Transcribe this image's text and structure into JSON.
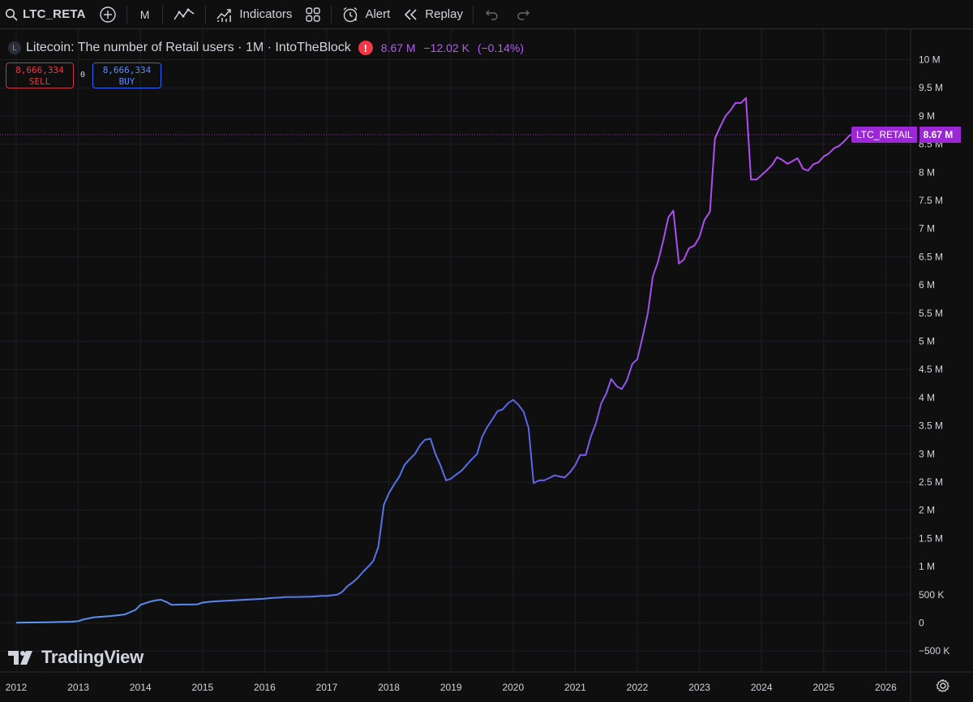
{
  "toolbar": {
    "symbol": "LTC_RETA",
    "interval": "M",
    "indicators_label": "Indicators",
    "alert_label": "Alert",
    "replay_label": "Replay"
  },
  "legend": {
    "logo_letter": "L",
    "title": "Litecoin: The number of Retail users · 1M · IntoTheBlock",
    "warning_icon": "!",
    "last_value": "8.67 M",
    "change": "−12.02 K",
    "change_pct": "(−0.14%)"
  },
  "trade": {
    "sell_price": "8,666,334",
    "sell_label": "SELL",
    "spread": "0",
    "buy_price": "8,666,334",
    "buy_label": "BUY"
  },
  "last_label": {
    "name": "LTC_RETAIL",
    "price": "8.67 M"
  },
  "brand": "TradingView",
  "colors": {
    "background": "#0f0f0f",
    "line_start": "#5b9cf0",
    "line_mid": "#5566e8",
    "line_end": "#b14cf0",
    "price_line": "#9c27d6",
    "sell": "#f23645",
    "buy": "#2962ff"
  },
  "chart_data": {
    "type": "line",
    "ylim": [
      -600000,
      10100000
    ],
    "xlim": [
      2011.95,
      2026.6
    ],
    "y_ticks": [
      {
        "value": 10000000,
        "label": "10 M"
      },
      {
        "value": 9500000,
        "label": "9.5 M"
      },
      {
        "value": 9000000,
        "label": "9 M"
      },
      {
        "value": 8500000,
        "label": "8.5 M"
      },
      {
        "value": 8000000,
        "label": "8 M"
      },
      {
        "value": 7500000,
        "label": "7.5 M"
      },
      {
        "value": 7000000,
        "label": "7 M"
      },
      {
        "value": 6500000,
        "label": "6.5 M"
      },
      {
        "value": 6000000,
        "label": "6 M"
      },
      {
        "value": 5500000,
        "label": "5.5 M"
      },
      {
        "value": 5000000,
        "label": "5 M"
      },
      {
        "value": 4500000,
        "label": "4.5 M"
      },
      {
        "value": 4000000,
        "label": "4 M"
      },
      {
        "value": 3500000,
        "label": "3.5 M"
      },
      {
        "value": 3000000,
        "label": "3 M"
      },
      {
        "value": 2500000,
        "label": "2.5 M"
      },
      {
        "value": 2000000,
        "label": "2 M"
      },
      {
        "value": 1500000,
        "label": "1.5 M"
      },
      {
        "value": 1000000,
        "label": "1 M"
      },
      {
        "value": 500000,
        "label": "500 K"
      },
      {
        "value": 0,
        "label": "0"
      },
      {
        "value": -500000,
        "label": "−500 K"
      }
    ],
    "x_ticks": [
      "2012",
      "2013",
      "2014",
      "2015",
      "2016",
      "2017",
      "2018",
      "2019",
      "2020",
      "2021",
      "2022",
      "2023",
      "2024",
      "2025",
      "2026"
    ],
    "last_value": 8666334,
    "series": [
      {
        "points": [
          [
            2012.0,
            5000
          ],
          [
            2012.5,
            10000
          ],
          [
            2012.9,
            22000
          ],
          [
            2013.0,
            30000
          ],
          [
            2013.08,
            60000
          ],
          [
            2013.25,
            100000
          ],
          [
            2013.5,
            120000
          ],
          [
            2013.75,
            150000
          ],
          [
            2013.92,
            230000
          ],
          [
            2014.0,
            320000
          ],
          [
            2014.08,
            350000
          ],
          [
            2014.17,
            380000
          ],
          [
            2014.25,
            400000
          ],
          [
            2014.33,
            410000
          ],
          [
            2014.42,
            370000
          ],
          [
            2014.5,
            320000
          ],
          [
            2014.67,
            325000
          ],
          [
            2014.83,
            325000
          ],
          [
            2014.92,
            330000
          ],
          [
            2015.0,
            360000
          ],
          [
            2015.17,
            380000
          ],
          [
            2015.5,
            400000
          ],
          [
            2015.75,
            415000
          ],
          [
            2016.0,
            430000
          ],
          [
            2016.08,
            440000
          ],
          [
            2016.17,
            445000
          ],
          [
            2016.25,
            450000
          ],
          [
            2016.33,
            460000
          ],
          [
            2016.42,
            460000
          ],
          [
            2016.5,
            460000
          ],
          [
            2016.75,
            465000
          ],
          [
            2016.92,
            480000
          ],
          [
            2017.0,
            480000
          ],
          [
            2017.17,
            500000
          ],
          [
            2017.25,
            550000
          ],
          [
            2017.33,
            650000
          ],
          [
            2017.42,
            720000
          ],
          [
            2017.5,
            800000
          ],
          [
            2017.58,
            900000
          ],
          [
            2017.67,
            1000000
          ],
          [
            2017.75,
            1100000
          ],
          [
            2017.83,
            1350000
          ],
          [
            2017.92,
            2100000
          ],
          [
            2018.0,
            2300000
          ],
          [
            2018.08,
            2450000
          ],
          [
            2018.17,
            2600000
          ],
          [
            2018.25,
            2800000
          ],
          [
            2018.33,
            2900000
          ],
          [
            2018.42,
            3000000
          ],
          [
            2018.5,
            3150000
          ],
          [
            2018.58,
            3250000
          ],
          [
            2018.67,
            3270000
          ],
          [
            2018.75,
            3000000
          ],
          [
            2018.83,
            2800000
          ],
          [
            2018.92,
            2530000
          ],
          [
            2019.0,
            2560000
          ],
          [
            2019.08,
            2630000
          ],
          [
            2019.17,
            2700000
          ],
          [
            2019.25,
            2800000
          ],
          [
            2019.33,
            2900000
          ],
          [
            2019.42,
            3000000
          ],
          [
            2019.5,
            3300000
          ],
          [
            2019.58,
            3470000
          ],
          [
            2019.67,
            3620000
          ],
          [
            2019.75,
            3760000
          ],
          [
            2019.83,
            3790000
          ],
          [
            2019.92,
            3900000
          ],
          [
            2020.0,
            3960000
          ],
          [
            2020.08,
            3880000
          ],
          [
            2020.17,
            3750000
          ],
          [
            2020.25,
            3460000
          ],
          [
            2020.33,
            2480000
          ],
          [
            2020.42,
            2530000
          ],
          [
            2020.5,
            2530000
          ],
          [
            2020.58,
            2570000
          ],
          [
            2020.67,
            2620000
          ],
          [
            2020.75,
            2600000
          ],
          [
            2020.83,
            2580000
          ],
          [
            2020.92,
            2680000
          ],
          [
            2021.0,
            2800000
          ],
          [
            2021.08,
            2980000
          ],
          [
            2021.17,
            2980000
          ],
          [
            2021.25,
            3300000
          ],
          [
            2021.33,
            3530000
          ],
          [
            2021.42,
            3900000
          ],
          [
            2021.5,
            4070000
          ],
          [
            2021.58,
            4330000
          ],
          [
            2021.67,
            4200000
          ],
          [
            2021.75,
            4150000
          ],
          [
            2021.83,
            4300000
          ],
          [
            2021.92,
            4600000
          ],
          [
            2022.0,
            4680000
          ],
          [
            2022.08,
            5050000
          ],
          [
            2022.17,
            5500000
          ],
          [
            2022.25,
            6150000
          ],
          [
            2022.33,
            6400000
          ],
          [
            2022.42,
            6800000
          ],
          [
            2022.5,
            7200000
          ],
          [
            2022.58,
            7320000
          ],
          [
            2022.67,
            6380000
          ],
          [
            2022.75,
            6450000
          ],
          [
            2022.83,
            6650000
          ],
          [
            2022.92,
            6700000
          ],
          [
            2023.0,
            6850000
          ],
          [
            2023.08,
            7150000
          ],
          [
            2023.17,
            7300000
          ],
          [
            2023.25,
            8600000
          ],
          [
            2023.33,
            8800000
          ],
          [
            2023.42,
            9000000
          ],
          [
            2023.5,
            9100000
          ],
          [
            2023.58,
            9230000
          ],
          [
            2023.67,
            9230000
          ],
          [
            2023.75,
            9320000
          ],
          [
            2023.83,
            7870000
          ],
          [
            2023.92,
            7870000
          ],
          [
            2024.0,
            7950000
          ],
          [
            2024.08,
            8030000
          ],
          [
            2024.17,
            8130000
          ],
          [
            2024.25,
            8270000
          ],
          [
            2024.33,
            8220000
          ],
          [
            2024.42,
            8150000
          ],
          [
            2024.5,
            8200000
          ],
          [
            2024.58,
            8250000
          ],
          [
            2024.67,
            8060000
          ],
          [
            2024.75,
            8030000
          ],
          [
            2024.83,
            8140000
          ],
          [
            2024.92,
            8180000
          ],
          [
            2025.0,
            8280000
          ],
          [
            2025.08,
            8330000
          ],
          [
            2025.17,
            8430000
          ],
          [
            2025.25,
            8470000
          ],
          [
            2025.33,
            8550000
          ],
          [
            2025.42,
            8660000
          ],
          [
            2025.5,
            8678000
          ],
          [
            2025.58,
            8666334
          ]
        ]
      }
    ]
  }
}
